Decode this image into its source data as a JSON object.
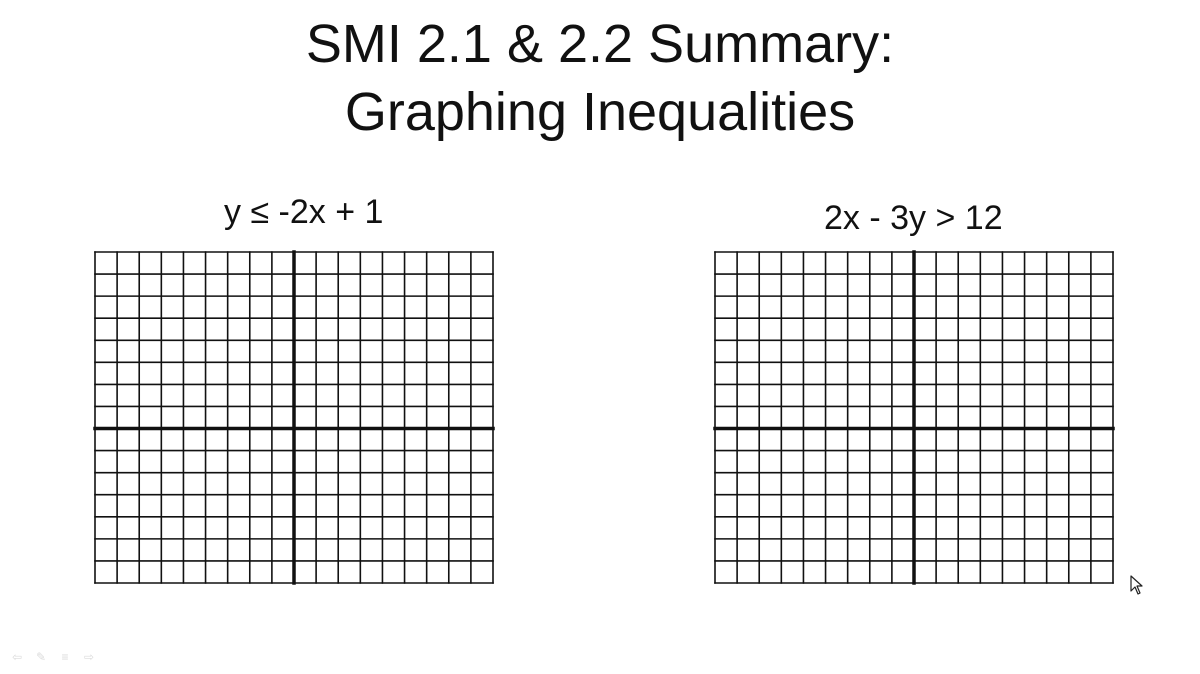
{
  "slide": {
    "title_line1": "SMI 2.1 & 2.2 Summary:",
    "title_line2": "Graphing Inequalities"
  },
  "problems": [
    {
      "inequality": "y ≤ -2x + 1",
      "grid": {
        "columns": 18,
        "rows": 15,
        "y_axis_after_column": 9,
        "x_axis_after_row": 8
      }
    },
    {
      "inequality": "2x - 3y > 12",
      "grid": {
        "columns": 18,
        "rows": 15,
        "y_axis_after_column": 9,
        "x_axis_after_row": 8
      }
    }
  ],
  "presentation_controls": {
    "icons": [
      "previous-arrow-icon",
      "pen-icon",
      "menu-icon",
      "next-arrow-icon"
    ],
    "glyphs": [
      "⇦",
      "✎",
      "≡",
      "⇨"
    ]
  },
  "colors": {
    "background": "#ffffff",
    "grid_line": "#111111",
    "text": "#111111"
  }
}
